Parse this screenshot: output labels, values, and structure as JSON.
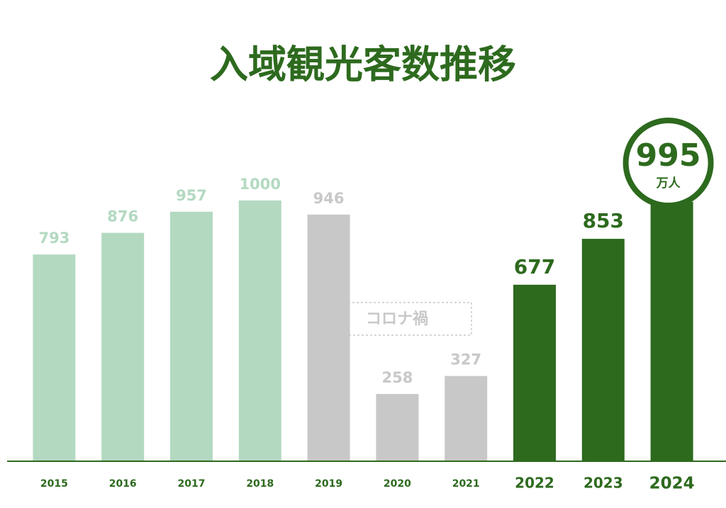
{
  "chart_data": {
    "type": "bar",
    "title": "入域観光客数推移",
    "categories": [
      "2015",
      "2016",
      "2017",
      "2018",
      "2019",
      "2020",
      "2021",
      "2022",
      "2023",
      "2024"
    ],
    "values": [
      793,
      876,
      957,
      1000,
      946,
      258,
      327,
      677,
      853,
      995
    ],
    "colors": [
      "#b3d9c1",
      "#b3d9c1",
      "#b3d9c1",
      "#b3d9c1",
      "#c8c8c8",
      "#c8c8c8",
      "#c8c8c8",
      "#2d6a1e",
      "#2d6a1e",
      "#2d6a1e"
    ],
    "unit": "万人",
    "annotation": "コロナ禍",
    "ylim": [
      0,
      1000
    ]
  }
}
